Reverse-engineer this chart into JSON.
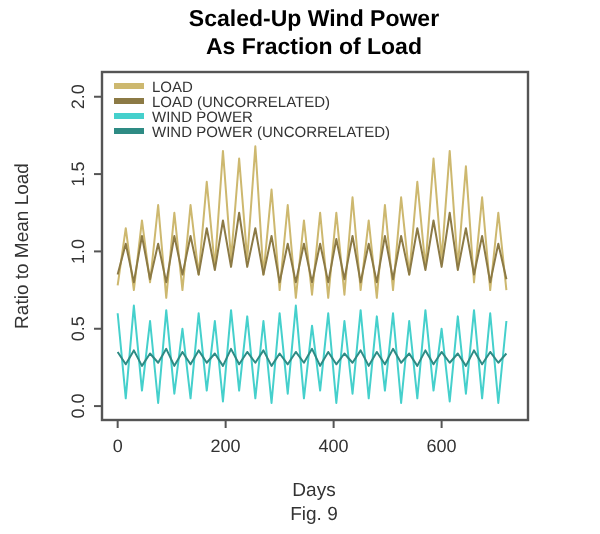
{
  "chart_data": {
    "type": "line",
    "title": "Scaled-Up Wind Power\nAs Fraction of Load",
    "xlabel": "Days",
    "ylabel": "Ratio to Mean Load",
    "annotations": [
      "Fig. 9"
    ],
    "x": [
      0,
      15,
      30,
      45,
      60,
      75,
      90,
      105,
      120,
      135,
      150,
      165,
      180,
      195,
      210,
      225,
      240,
      255,
      270,
      285,
      300,
      315,
      330,
      345,
      360,
      375,
      390,
      405,
      420,
      435,
      450,
      465,
      480,
      495,
      510,
      525,
      540,
      555,
      570,
      585,
      600,
      615,
      630,
      645,
      660,
      675,
      690,
      705,
      720
    ],
    "series": [
      {
        "name": "LOAD",
        "color": "#cdb86f",
        "values": [
          0.78,
          1.15,
          0.75,
          1.2,
          0.8,
          1.3,
          0.7,
          1.25,
          0.75,
          1.3,
          0.85,
          1.45,
          0.9,
          1.65,
          0.95,
          1.6,
          0.95,
          1.68,
          0.85,
          1.4,
          0.75,
          1.3,
          0.7,
          1.2,
          0.72,
          1.25,
          0.7,
          1.25,
          0.72,
          1.35,
          0.75,
          1.2,
          0.7,
          1.3,
          0.75,
          1.35,
          0.85,
          1.45,
          0.9,
          1.6,
          0.95,
          1.65,
          0.9,
          1.55,
          0.8,
          1.35,
          0.75,
          1.25,
          0.75
        ]
      },
      {
        "name": "LOAD (UNCORRELATED)",
        "color": "#8c7a45",
        "values": [
          0.85,
          1.05,
          0.8,
          1.1,
          0.82,
          1.05,
          0.8,
          1.1,
          0.85,
          1.1,
          0.85,
          1.15,
          0.88,
          1.2,
          0.9,
          1.25,
          0.9,
          1.15,
          0.85,
          1.1,
          0.8,
          1.05,
          0.8,
          1.05,
          0.8,
          1.05,
          0.8,
          1.08,
          0.82,
          1.1,
          0.8,
          1.05,
          0.8,
          1.1,
          0.82,
          1.1,
          0.85,
          1.15,
          0.88,
          1.2,
          0.9,
          1.25,
          0.88,
          1.15,
          0.85,
          1.1,
          0.8,
          1.05,
          0.82
        ]
      },
      {
        "name": "WIND POWER",
        "color": "#45d0cc",
        "values": [
          0.6,
          0.05,
          0.65,
          0.1,
          0.55,
          0.02,
          0.62,
          0.08,
          0.5,
          0.05,
          0.6,
          0.1,
          0.55,
          0.03,
          0.62,
          0.1,
          0.58,
          0.05,
          0.55,
          0.02,
          0.6,
          0.08,
          0.65,
          0.05,
          0.52,
          0.1,
          0.6,
          0.02,
          0.55,
          0.08,
          0.62,
          0.05,
          0.58,
          0.1,
          0.6,
          0.02,
          0.55,
          0.05,
          0.62,
          0.1,
          0.5,
          0.03,
          0.58,
          0.08,
          0.62,
          0.05,
          0.6,
          0.02,
          0.55
        ]
      },
      {
        "name": "WIND POWER (UNCORRELATED)",
        "color": "#2e8b84",
        "values": [
          0.35,
          0.27,
          0.36,
          0.26,
          0.34,
          0.28,
          0.37,
          0.26,
          0.35,
          0.27,
          0.36,
          0.28,
          0.34,
          0.26,
          0.37,
          0.27,
          0.35,
          0.28,
          0.36,
          0.26,
          0.34,
          0.27,
          0.35,
          0.28,
          0.37,
          0.26,
          0.35,
          0.27,
          0.34,
          0.28,
          0.36,
          0.26,
          0.35,
          0.27,
          0.37,
          0.28,
          0.34,
          0.26,
          0.36,
          0.27,
          0.35,
          0.28,
          0.34,
          0.26,
          0.36,
          0.27,
          0.35,
          0.28,
          0.34
        ]
      }
    ],
    "xlim": [
      -29,
      760
    ],
    "ylim": [
      -0.09,
      2.16
    ],
    "xticks": [
      0,
      200,
      400,
      600
    ],
    "yticks": [
      {
        "value": 0,
        "label": "0.0"
      },
      {
        "value": 0.5,
        "label": "0.5"
      },
      {
        "value": 1,
        "label": "1.0"
      },
      {
        "value": 1.5,
        "label": "1.5"
      },
      {
        "value": 2,
        "label": "2.0"
      }
    ],
    "grid": false,
    "legend": "top left",
    "line_style": "solid",
    "marker": "none"
  }
}
